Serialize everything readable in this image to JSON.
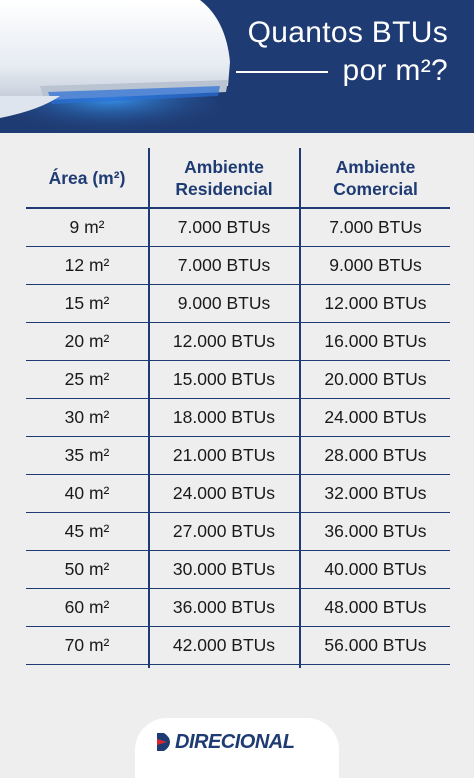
{
  "header": {
    "title_line1": "Quantos BTUs",
    "title_line2": "por m²?"
  },
  "table": {
    "headers": [
      {
        "line1": "Área (m²)",
        "line2": ""
      },
      {
        "line1": "Ambiente",
        "line2": "Residencial"
      },
      {
        "line1": "Ambiente",
        "line2": "Comercial"
      }
    ],
    "rows": [
      {
        "area": "9 m²",
        "residencial": "7.000 BTUs",
        "comercial": "7.000 BTUs"
      },
      {
        "area": "12 m²",
        "residencial": "7.000 BTUs",
        "comercial": "9.000 BTUs"
      },
      {
        "area": "15 m²",
        "residencial": "9.000 BTUs",
        "comercial": "12.000 BTUs"
      },
      {
        "area": "20 m²",
        "residencial": "12.000 BTUs",
        "comercial": "16.000 BTUs"
      },
      {
        "area": "25 m²",
        "residencial": "15.000 BTUs",
        "comercial": "20.000 BTUs"
      },
      {
        "area": "30 m²",
        "residencial": "18.000 BTUs",
        "comercial": "24.000 BTUs"
      },
      {
        "area": "35 m²",
        "residencial": "21.000 BTUs",
        "comercial": "28.000 BTUs"
      },
      {
        "area": "40 m²",
        "residencial": "24.000 BTUs",
        "comercial": "32.000 BTUs"
      },
      {
        "area": "45 m²",
        "residencial": "27.000 BTUs",
        "comercial": "36.000 BTUs"
      },
      {
        "area": "50 m²",
        "residencial": "30.000 BTUs",
        "comercial": "40.000 BTUs"
      },
      {
        "area": "60 m²",
        "residencial": "36.000 BTUs",
        "comercial": "48.000 BTUs"
      },
      {
        "area": "70 m²",
        "residencial": "42.000 BTUs",
        "comercial": "56.000 BTUs"
      }
    ]
  },
  "footer": {
    "logo_text": "DIRECIONAL"
  },
  "colors": {
    "brand_navy": "#1f3b73",
    "background": "#eeeeee",
    "logo_red": "#d7262e"
  },
  "icons": {
    "header_illustration": "air-conditioner-icon",
    "logo_mark": "direcional-logo-icon"
  }
}
